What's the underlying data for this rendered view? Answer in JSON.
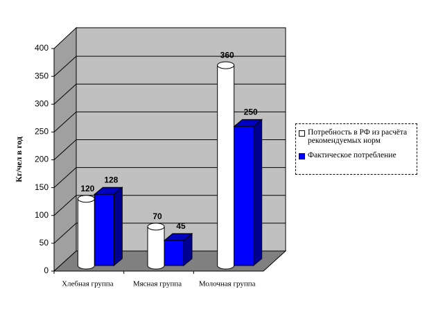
{
  "chart_data": {
    "type": "bar3d",
    "y_label": "Кг/чел в год",
    "categories": [
      "Хлебная группа",
      "Мясная группа",
      "Молочная группа"
    ],
    "series": [
      {
        "name": "Потребность в РФ из расчёта рекомендуемых норм",
        "color": "#ffffff",
        "values": [
          120,
          70,
          360
        ]
      },
      {
        "name": "Фактическое потребление",
        "color": "#0000ff",
        "values": [
          128,
          45,
          250
        ]
      }
    ],
    "ylim": [
      0,
      400
    ],
    "yticks": [
      0,
      50,
      100,
      150,
      200,
      250,
      300,
      350,
      400
    ],
    "grid": true
  }
}
